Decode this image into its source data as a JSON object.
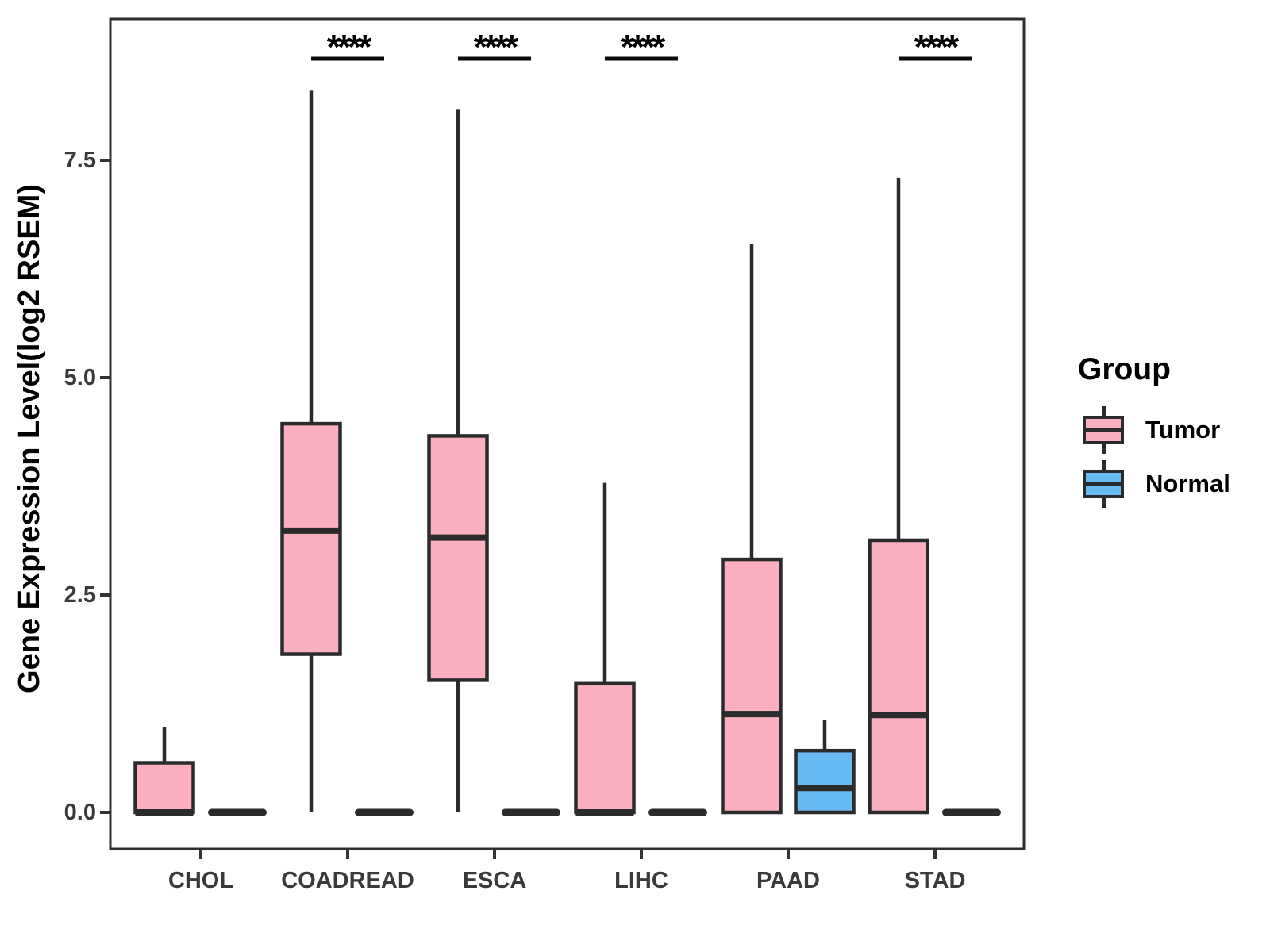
{
  "figure": {
    "y_axis": {
      "label": "Gene Expression Level(log2 RSEM)",
      "ticks": [
        "0.0",
        "2.5",
        "5.0",
        "7.5"
      ]
    },
    "x_axis": {
      "labels": [
        "CHOL",
        "COADREAD",
        "ESCA",
        "LIHC",
        "PAAD",
        "STAD"
      ]
    },
    "legend": {
      "title": "Group",
      "items": [
        {
          "label": "Tumor",
          "color": "#FBAFC0"
        },
        {
          "label": "Normal",
          "color": "#68BBF2"
        }
      ]
    }
  },
  "chart_data": {
    "type": "boxplot",
    "title": "",
    "xlabel": "",
    "ylabel": "Gene Expression Level(log2 RSEM)",
    "categories": [
      "CHOL",
      "COADREAD",
      "ESCA",
      "LIHC",
      "PAAD",
      "STAD"
    ],
    "groups": [
      "Tumor",
      "Normal"
    ],
    "y_ticks": [
      0.0,
      2.5,
      5.0,
      7.5
    ],
    "ylim": [
      -0.42,
      9.12
    ],
    "grid": false,
    "legend_position": "right",
    "stroke_color": "#2b2b2b",
    "series": [
      {
        "name": "Tumor",
        "color": "#FBAFC0",
        "boxes": [
          {
            "category": "CHOL",
            "min": 0,
            "q1": 0,
            "median": 0,
            "q3": 0.57,
            "max": 0.98
          },
          {
            "category": "COADREAD",
            "min": 0,
            "q1": 1.82,
            "median": 3.24,
            "q3": 4.47,
            "max": 8.3
          },
          {
            "category": "ESCA",
            "min": 0,
            "q1": 1.52,
            "median": 3.16,
            "q3": 4.33,
            "max": 8.08
          },
          {
            "category": "LIHC",
            "min": 0,
            "q1": 0,
            "median": 0,
            "q3": 1.48,
            "max": 3.79
          },
          {
            "category": "PAAD",
            "min": 0,
            "q1": 0,
            "median": 1.13,
            "q3": 2.91,
            "max": 6.54
          },
          {
            "category": "STAD",
            "min": 0,
            "q1": 0,
            "median": 1.12,
            "q3": 3.13,
            "max": 7.3
          }
        ]
      },
      {
        "name": "Normal",
        "color": "#68BBF2",
        "boxes": [
          {
            "category": "CHOL",
            "min": 0,
            "q1": 0,
            "median": 0,
            "q3": 0,
            "max": 0
          },
          {
            "category": "COADREAD",
            "min": 0,
            "q1": 0,
            "median": 0,
            "q3": 0,
            "max": 0
          },
          {
            "category": "ESCA",
            "min": 0,
            "q1": 0,
            "median": 0,
            "q3": 0,
            "max": 0
          },
          {
            "category": "LIHC",
            "min": 0,
            "q1": 0,
            "median": 0,
            "q3": 0,
            "max": 0
          },
          {
            "category": "PAAD",
            "min": 0,
            "q1": 0,
            "median": 0.28,
            "q3": 0.71,
            "max": 1.06
          },
          {
            "category": "STAD",
            "min": 0,
            "q1": 0,
            "median": 0,
            "q3": 0,
            "max": 0
          }
        ]
      }
    ],
    "significance": [
      {
        "category": "COADREAD",
        "label": "****"
      },
      {
        "category": "ESCA",
        "label": "****"
      },
      {
        "category": "LIHC",
        "label": "****"
      },
      {
        "category": "STAD",
        "label": "****"
      }
    ]
  }
}
